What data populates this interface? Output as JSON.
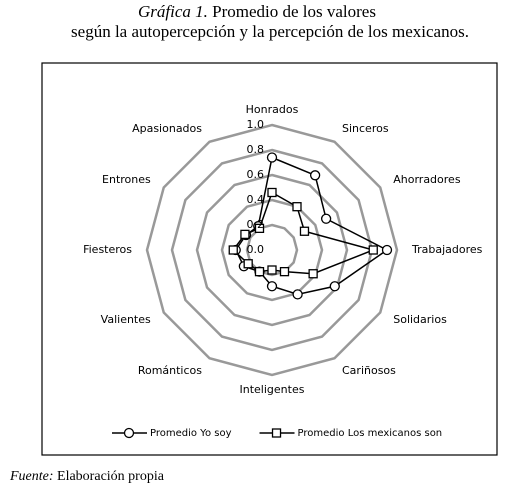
{
  "chart_data": {
    "type": "radar",
    "figure_label": "Gráfica 1.",
    "title_lines": [
      "Promedio de los valores",
      "según la autopercepción y la percepción de los mexicanos."
    ],
    "categories": [
      "Honrados",
      "Sinceros",
      "Ahorradores",
      "Trabajadores",
      "Solidarios",
      "Cariñosos",
      "Inteligentes",
      "Románticos",
      "Valientes",
      "Fiesteros",
      "Entrones",
      "Apasionados"
    ],
    "series": [
      {
        "name": "Promedio Yo soy",
        "color": "#000000",
        "marker": "circle",
        "values": [
          0.74,
          0.69,
          0.5,
          0.92,
          0.58,
          0.41,
          0.29,
          0.2,
          0.26,
          0.29,
          0.24,
          0.22
        ]
      },
      {
        "name": "Promedio Los mexicanos son",
        "color": "#000000",
        "marker": "square",
        "values": [
          0.46,
          0.4,
          0.3,
          0.81,
          0.38,
          0.2,
          0.16,
          0.2,
          0.22,
          0.31,
          0.25,
          0.2
        ]
      }
    ],
    "ylim": [
      0,
      1
    ],
    "yticks": [
      {
        "value": 0,
        "label": "0.0"
      },
      0.2,
      0.4,
      0.6,
      0.8,
      {
        "value": 1,
        "label": "1.0"
      }
    ],
    "grid": true,
    "legend": "bottom",
    "source_label": "Fuente:",
    "source": "Elaboración propia"
  }
}
